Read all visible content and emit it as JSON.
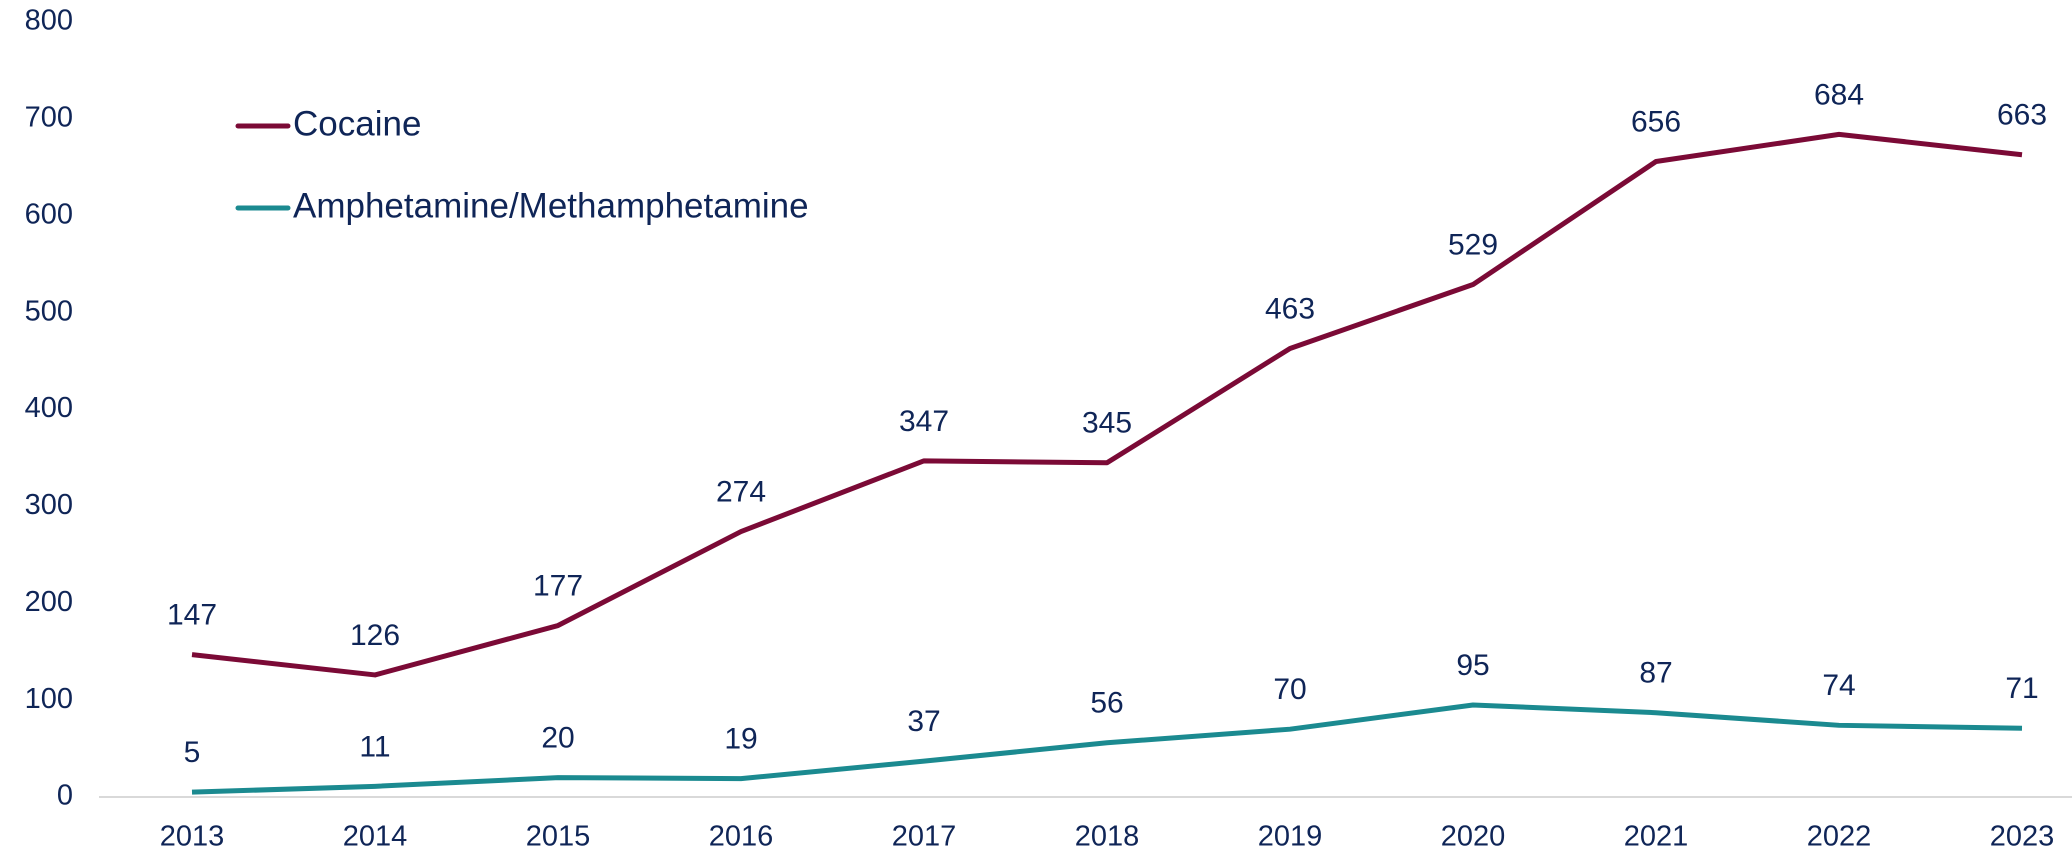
{
  "chart_data": {
    "type": "line",
    "categories": [
      "2013",
      "2014",
      "2015",
      "2016",
      "2017",
      "2018",
      "2019",
      "2020",
      "2021",
      "2022",
      "2023"
    ],
    "series": [
      {
        "name": "Cocaine",
        "color": "#7b0a36",
        "values": [
          147,
          126,
          177,
          274,
          347,
          345,
          463,
          529,
          656,
          684,
          663
        ]
      },
      {
        "name": "Amphetamine/Methamphetamine",
        "color": "#1b8a90",
        "values": [
          5,
          11,
          20,
          19,
          37,
          56,
          70,
          95,
          87,
          74,
          71
        ]
      }
    ],
    "ylim": [
      0,
      800
    ],
    "yticks": [
      0,
      100,
      200,
      300,
      400,
      500,
      600,
      700,
      800
    ],
    "grid": false,
    "legend": "top-left"
  }
}
